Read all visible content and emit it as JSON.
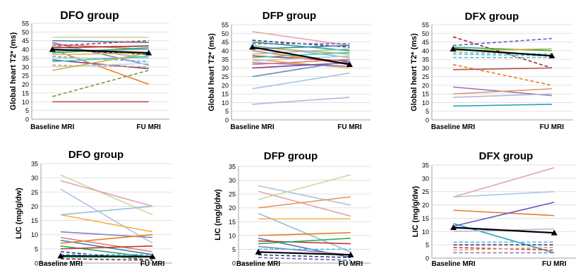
{
  "chart_data": [
    {
      "type": "line",
      "title": "DFO group",
      "ylabel": "Global heart T2* (ms)",
      "categories": [
        "Baseline MRI",
        "FU  MRI"
      ],
      "ylim": [
        0,
        55
      ],
      "ytick_step": 5,
      "ytick_labels": [
        "0",
        "5",
        "10",
        "15",
        "20",
        "25",
        "30",
        "35",
        "40",
        "45",
        "50",
        "55"
      ],
      "grid": true,
      "mean": [
        40,
        38
      ],
      "series": [
        {
          "values": [
            47,
            47
          ],
          "color": "#c6dba0",
          "dashed": false
        },
        {
          "values": [
            45,
            44
          ],
          "color": "#4a7bb7",
          "dashed": false
        },
        {
          "values": [
            44,
            31
          ],
          "color": "#8e7cc3",
          "dashed": false
        },
        {
          "values": [
            43,
            40
          ],
          "color": "#e07b7b",
          "dashed": false
        },
        {
          "values": [
            42,
            45
          ],
          "color": "#c0392b",
          "dashed": true
        },
        {
          "values": [
            42,
            35
          ],
          "color": "#9bbbd9",
          "dashed": false
        },
        {
          "values": [
            41,
            42
          ],
          "color": "#9e2a2b",
          "dashed": false
        },
        {
          "values": [
            40,
            37
          ],
          "color": "#2c3e7a",
          "dashed": true
        },
        {
          "values": [
            40,
            20
          ],
          "color": "#e67e22",
          "dashed": false
        },
        {
          "values": [
            39,
            40
          ],
          "color": "#7fb3d5",
          "dashed": false
        },
        {
          "values": [
            38,
            41
          ],
          "color": "#27ae60",
          "dashed": false
        },
        {
          "values": [
            37,
            38
          ],
          "color": "#f5b041",
          "dashed": false
        },
        {
          "values": [
            36,
            33
          ],
          "color": "#5dade2",
          "dashed": true
        },
        {
          "values": [
            35,
            35
          ],
          "color": "#a9cce3",
          "dashed": false
        },
        {
          "values": [
            34,
            29
          ],
          "color": "#7d3c98",
          "dashed": false
        },
        {
          "values": [
            33,
            36
          ],
          "color": "#48c9b0",
          "dashed": false
        },
        {
          "values": [
            31,
            30
          ],
          "color": "#e59866",
          "dashed": true
        },
        {
          "values": [
            30,
            32
          ],
          "color": "#bdd7ee",
          "dashed": false
        },
        {
          "values": [
            28,
            38
          ],
          "color": "#c9b037",
          "dashed": false
        },
        {
          "values": [
            13,
            28
          ],
          "color": "#7a9a3a",
          "dashed": true
        },
        {
          "values": [
            10,
            10
          ],
          "color": "#c0504d",
          "dashed": false
        }
      ]
    },
    {
      "type": "line",
      "title": "DFP group",
      "ylabel": "Global heart  T2* (ms)",
      "categories": [
        "Baseline MRI",
        "FU  MRI"
      ],
      "ylim": [
        0,
        55
      ],
      "ytick_step": 5,
      "ytick_labels": [
        "0",
        "5",
        "10",
        "15",
        "20",
        "25",
        "30",
        "35",
        "40",
        "45",
        "50",
        "55"
      ],
      "grid": true,
      "mean": [
        42,
        32
      ],
      "series": [
        {
          "values": [
            51,
            43
          ],
          "color": "#e6a5a5",
          "dashed": false
        },
        {
          "values": [
            46,
            42
          ],
          "color": "#2c3e7a",
          "dashed": true
        },
        {
          "values": [
            45,
            40
          ],
          "color": "#27ae60",
          "dashed": false
        },
        {
          "values": [
            44,
            44
          ],
          "color": "#6a5acd",
          "dashed": true
        },
        {
          "values": [
            43,
            36
          ],
          "color": "#7fb3d5",
          "dashed": false
        },
        {
          "values": [
            42,
            38
          ],
          "color": "#c9b037",
          "dashed": false
        },
        {
          "values": [
            41,
            43
          ],
          "color": "#4a7bb7",
          "dashed": false
        },
        {
          "values": [
            40,
            32
          ],
          "color": "#e67e22",
          "dashed": false
        },
        {
          "values": [
            38,
            41
          ],
          "color": "#9bbbd9",
          "dashed": false
        },
        {
          "values": [
            37,
            34
          ],
          "color": "#c0392b",
          "dashed": false
        },
        {
          "values": [
            36,
            39
          ],
          "color": "#48c9b0",
          "dashed": false
        },
        {
          "values": [
            35,
            30
          ],
          "color": "#f5b041",
          "dashed": false
        },
        {
          "values": [
            34,
            37
          ],
          "color": "#a9cce3",
          "dashed": false
        },
        {
          "values": [
            33,
            31
          ],
          "color": "#8e7cc3",
          "dashed": false
        },
        {
          "values": [
            32,
            35
          ],
          "color": "#e07b7b",
          "dashed": false
        },
        {
          "values": [
            30,
            33
          ],
          "color": "#7d3c98",
          "dashed": false
        },
        {
          "values": [
            25,
            34
          ],
          "color": "#5b8ec9",
          "dashed": false
        },
        {
          "values": [
            18,
            27
          ],
          "color": "#a9c4e0",
          "dashed": false
        },
        {
          "values": [
            9,
            13
          ],
          "color": "#b8b8d8",
          "dashed": false
        }
      ]
    },
    {
      "type": "line",
      "title": "DFX group",
      "ylabel": "Global heart T2* (ms)",
      "categories": [
        "Baseline MRI",
        "FU  MRI"
      ],
      "ylim": [
        0,
        55
      ],
      "ytick_step": 5,
      "ytick_labels": [
        "0",
        "5",
        "10",
        "15",
        "20",
        "25",
        "30",
        "35",
        "40",
        "45",
        "50",
        "55"
      ],
      "grid": true,
      "mean": [
        41,
        37
      ],
      "series": [
        {
          "values": [
            48,
            30
          ],
          "color": "#9e2a2b",
          "dashed": true
        },
        {
          "values": [
            43,
            47
          ],
          "color": "#6a5acd",
          "dashed": true
        },
        {
          "values": [
            42,
            40
          ],
          "color": "#27ae60",
          "dashed": false
        },
        {
          "values": [
            40,
            41
          ],
          "color": "#c9b037",
          "dashed": false
        },
        {
          "values": [
            39,
            38
          ],
          "color": "#7fb3d5",
          "dashed": true
        },
        {
          "values": [
            38,
            37
          ],
          "color": "#48c9b0",
          "dashed": true
        },
        {
          "values": [
            36,
            36
          ],
          "color": "#5dade2",
          "dashed": true
        },
        {
          "values": [
            32,
            20
          ],
          "color": "#e67e22",
          "dashed": true
        },
        {
          "values": [
            29,
            30
          ],
          "color": "#c0504d",
          "dashed": false
        },
        {
          "values": [
            19,
            14
          ],
          "color": "#8e7cc3",
          "dashed": false
        },
        {
          "values": [
            15,
            18
          ],
          "color": "#e59866",
          "dashed": false
        },
        {
          "values": [
            13,
            15
          ],
          "color": "#b8b8d8",
          "dashed": false
        },
        {
          "values": [
            8,
            9
          ],
          "color": "#17a2b8",
          "dashed": false
        }
      ]
    },
    {
      "type": "line",
      "title": "DFO group",
      "ylabel": "LIC (mg/g/dw)",
      "categories": [
        "Baseline MRI",
        "FU  MRI"
      ],
      "ylim": [
        0,
        35
      ],
      "ytick_step": 5,
      "ytick_labels": [
        "0",
        "5",
        "10",
        "15",
        "20",
        "25",
        "30",
        "35"
      ],
      "grid": true,
      "mean": [
        2.5,
        2.3
      ],
      "series": [
        {
          "values": [
            31,
            17
          ],
          "color": "#c6dba0",
          "dashed": false
        },
        {
          "values": [
            29,
            20
          ],
          "color": "#e6a5a5",
          "dashed": false
        },
        {
          "values": [
            26,
            7
          ],
          "color": "#a9c4e0",
          "dashed": false
        },
        {
          "values": [
            17,
            20
          ],
          "color": "#9bbbd9",
          "dashed": false
        },
        {
          "values": [
            17,
            11
          ],
          "color": "#f5b041",
          "dashed": false
        },
        {
          "values": [
            11,
            9
          ],
          "color": "#8e7cc3",
          "dashed": false
        },
        {
          "values": [
            9,
            4
          ],
          "color": "#e07b7b",
          "dashed": false
        },
        {
          "values": [
            8,
            3
          ],
          "color": "#4a7bb7",
          "dashed": false
        },
        {
          "values": [
            7,
            10
          ],
          "color": "#e67e22",
          "dashed": false
        },
        {
          "values": [
            6,
            2
          ],
          "color": "#27ae60",
          "dashed": false
        },
        {
          "values": [
            5,
            6
          ],
          "color": "#c0392b",
          "dashed": false
        },
        {
          "values": [
            4,
            1
          ],
          "color": "#2c3e7a",
          "dashed": true
        },
        {
          "values": [
            3,
            3
          ],
          "color": "#5dade2",
          "dashed": true
        },
        {
          "values": [
            2,
            2
          ],
          "color": "#48c9b0",
          "dashed": false
        },
        {
          "values": [
            1.5,
            1
          ],
          "color": "#9e2a2b",
          "dashed": true
        }
      ]
    },
    {
      "type": "line",
      "title": "DFP group",
      "ylabel": "LIC (mg/g/dw)",
      "categories": [
        "Baseline MRI",
        "FU  MRI"
      ],
      "ylim": [
        0,
        35
      ],
      "ytick_step": 5,
      "ytick_labels": [
        "0",
        "5",
        "10",
        "15",
        "20",
        "25",
        "30",
        "35"
      ],
      "grid": true,
      "mean": [
        4,
        3
      ],
      "series": [
        {
          "values": [
            28,
            21
          ],
          "color": "#a9c4e0",
          "dashed": false
        },
        {
          "values": [
            26,
            17
          ],
          "color": "#e6a5a5",
          "dashed": false
        },
        {
          "values": [
            23,
            32
          ],
          "color": "#c6dba0",
          "dashed": false
        },
        {
          "values": [
            20,
            24
          ],
          "color": "#e59866",
          "dashed": false
        },
        {
          "values": [
            18,
            4
          ],
          "color": "#9bbbd9",
          "dashed": false
        },
        {
          "values": [
            16,
            16
          ],
          "color": "#f5b041",
          "dashed": false
        },
        {
          "values": [
            10,
            11
          ],
          "color": "#e67e22",
          "dashed": false
        },
        {
          "values": [
            9,
            2
          ],
          "color": "#4a7bb7",
          "dashed": false
        },
        {
          "values": [
            8,
            7
          ],
          "color": "#c0392b",
          "dashed": false
        },
        {
          "values": [
            7,
            9
          ],
          "color": "#27ae60",
          "dashed": false
        },
        {
          "values": [
            6,
            3
          ],
          "color": "#8e7cc3",
          "dashed": false
        },
        {
          "values": [
            5,
            5
          ],
          "color": "#5dade2",
          "dashed": true
        },
        {
          "values": [
            3,
            2
          ],
          "color": "#2c3e7a",
          "dashed": true
        },
        {
          "values": [
            2,
            1
          ],
          "color": "#6a5acd",
          "dashed": true
        }
      ]
    },
    {
      "type": "line",
      "title": "DFX group",
      "ylabel": "LIC (mg/g/dw)",
      "categories": [
        "Baseline MRI",
        "FU  MRI"
      ],
      "ylim": [
        0,
        35
      ],
      "ytick_step": 5,
      "ytick_labels": [
        "0",
        "5",
        "10",
        "15",
        "20",
        "25",
        "30",
        "35"
      ],
      "grid": true,
      "mean": [
        11.5,
        9.5
      ],
      "series": [
        {
          "values": [
            23,
            34
          ],
          "color": "#e6a5a5",
          "dashed": false
        },
        {
          "values": [
            23,
            25
          ],
          "color": "#a9c4e0",
          "dashed": false
        },
        {
          "values": [
            18,
            16
          ],
          "color": "#e67e22",
          "dashed": false
        },
        {
          "values": [
            13,
            2
          ],
          "color": "#17a2b8",
          "dashed": false
        },
        {
          "values": [
            12,
            21
          ],
          "color": "#6a5acd",
          "dashed": false
        },
        {
          "values": [
            10,
            11
          ],
          "color": "#b8b8d8",
          "dashed": false
        },
        {
          "values": [
            6,
            6
          ],
          "color": "#5dade2",
          "dashed": true
        },
        {
          "values": [
            5,
            5
          ],
          "color": "#2c3e7a",
          "dashed": true
        },
        {
          "values": [
            4,
            3
          ],
          "color": "#c0392b",
          "dashed": true
        },
        {
          "values": [
            3,
            4
          ],
          "color": "#e59866",
          "dashed": true
        },
        {
          "values": [
            2,
            2
          ],
          "color": "#8e7cc3",
          "dashed": true
        }
      ]
    }
  ]
}
